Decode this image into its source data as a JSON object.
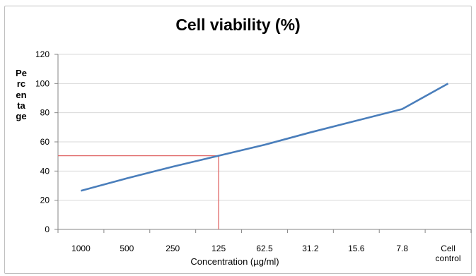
{
  "chart_data": {
    "type": "line",
    "title": "Cell viability (%)",
    "xlabel": "Concentration (µg/ml)",
    "ylabel": "Percentage",
    "categories": [
      "1000",
      "500",
      "250",
      "125",
      "62.5",
      "31.2",
      "15.6",
      "7.8",
      "Cell control"
    ],
    "series": [
      {
        "values": [
          26.5,
          35,
          43,
          50.5,
          58,
          66.5,
          74.5,
          82.5,
          100
        ]
      }
    ],
    "ylim": [
      0,
      120
    ],
    "yticks": [
      0,
      20,
      40,
      60,
      80,
      100,
      120
    ],
    "grid": true,
    "legend": "none",
    "reference": {
      "x_category": "125",
      "y": 50.5
    },
    "colors": {
      "line": "#4a7ebb",
      "reference": "#e06666",
      "grid": "#d9d9d9",
      "axis": "#868686"
    }
  }
}
